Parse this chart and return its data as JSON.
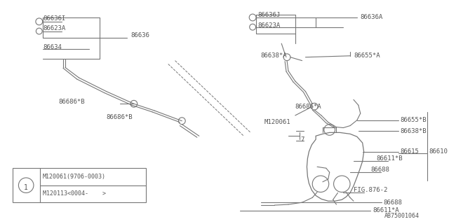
{
  "bg_color": "#ffffff",
  "line_color": "#777777",
  "text_color": "#555555",
  "font_size": 6.5,
  "ref_code": "AB75001064",
  "legend_row1": "M120061(9706-0003)",
  "legend_row2": "M120113<0004-    >"
}
